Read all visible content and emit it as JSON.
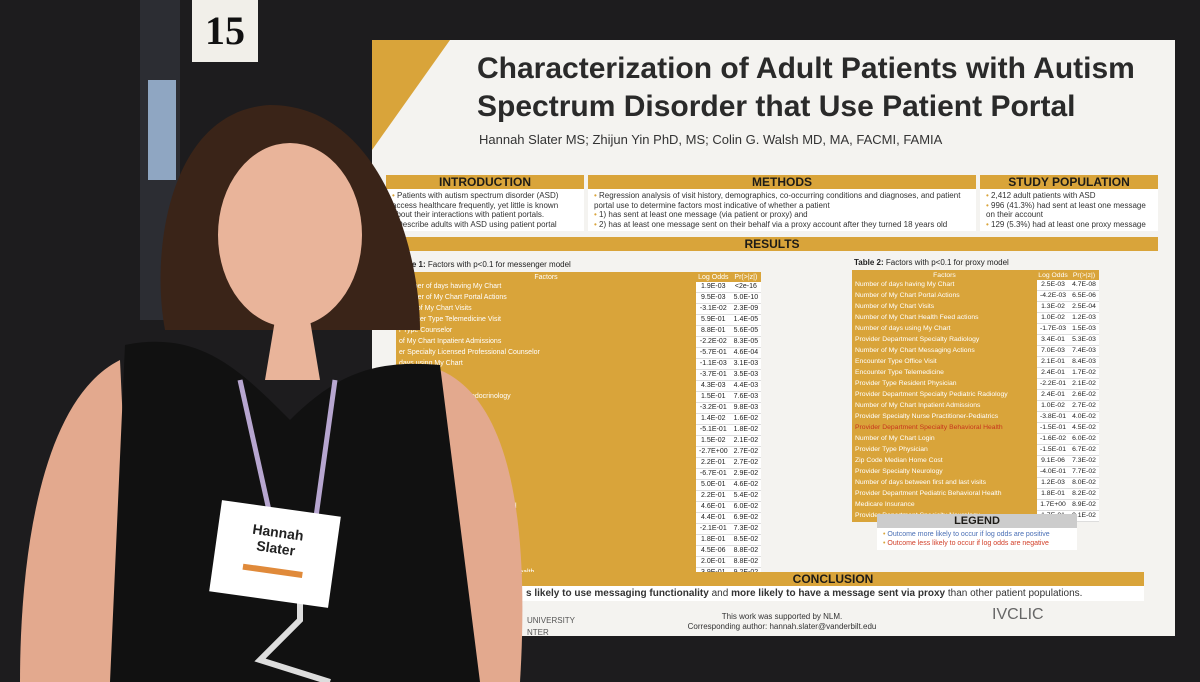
{
  "sign_number": "15",
  "badge": {
    "first": "Hannah",
    "last": "Slater"
  },
  "poster": {
    "title": [
      "Characterization of Adult Patients with Autism",
      "Spectrum Disorder that Use Patient Portal"
    ],
    "authors": "Hannah Slater MS; Zhijun Yin PhD, MS; Colin G. Walsh MD, MA, FACMI, FAMIA",
    "introduction": {
      "heading": "INTRODUCTION",
      "bullets": [
        "Patients with autism spectrum disorder (ASD) access healthcare frequently, yet little is known about their interactions with patient portals.",
        "Describe adults with ASD using patient portal"
      ]
    },
    "methods": {
      "heading": "METHODS",
      "bullets": [
        "Regression analysis of visit history, demographics, co-occurring conditions and diagnoses, and patient portal use to determine factors most indicative of whether a patient",
        "1) has sent at least one message (via patient or proxy) and",
        "2) has at least one message sent on their behalf via a proxy account after they turned 18 years old"
      ]
    },
    "study_population": {
      "heading": "STUDY POPULATION",
      "bullets": [
        "2,412 adult patients with ASD",
        "996 (41.3%) had sent at least one message on their account",
        "129 (5.3%) had at least one proxy message"
      ]
    },
    "results_heading": "RESULTS",
    "table1": {
      "caption_bold": "Table 1:",
      "caption": "Factors with p<0.1 for messenger model",
      "columns": [
        "Factors",
        "Log Odds",
        "Pr(>|z|)"
      ],
      "rows": [
        [
          "Number of days having My Chart",
          "1.9E-03",
          "<2e-16"
        ],
        [
          "Number of My Chart Portal Actions",
          "9.5E-03",
          "5.0E-10"
        ],
        [
          "mber of My Chart Visits",
          "-3.1E-02",
          "2.3E-09"
        ],
        [
          "ncounter Type Telemedicine Visit",
          "5.9E-01",
          "1.4E-05"
        ],
        [
          "r Type Counselor",
          "8.8E-01",
          "5.6E-05"
        ],
        [
          "of My Chart Inpatient Admissions",
          "-2.2E-02",
          "8.3E-05"
        ],
        [
          "er Specialty Licensed Professional Counselor",
          "-5.7E-01",
          "4.6E-04"
        ],
        [
          "days using My Chart",
          "-1.1E-03",
          "3.1E-03"
        ],
        [
          "Psychologist",
          "-3.7E-01",
          "3.5E-03"
        ],
        [
          "actions by Proxy",
          "4.3E-03",
          "4.4E-03"
        ],
        [
          "nt Specialty Pediatric Endocrinology",
          "1.5E-01",
          "7.6E-03"
        ],
        [
          "mergency department",
          "-3.2E-01",
          "9.8E-03"
        ],
        [
          "ealth Feed actions",
          "1.4E-02",
          "1.6E-02"
        ],
        [
          null,
          "-5.1E-01",
          "1.8E-02"
        ],
        [
          null,
          "1.5E-02",
          "2.1E-02"
        ],
        [
          "ssaging Actions",
          "-2.7E+00",
          "2.7E-02"
        ],
        [
          null,
          "2.2E-01",
          "2.7E-02"
        ],
        [
          "Visit",
          "-6.7E-01",
          "2.9E-02"
        ],
        [
          "ition",
          "5.0E-01",
          "4.6E-02"
        ],
        [
          "ort",
          "2.2E-01",
          "5.4E-02"
        ],
        [
          "al Health General Psychiatric Hospital",
          "4.6E-01",
          "6.0E-02"
        ],
        [
          "n",
          "4.4E-01",
          "6.9E-02"
        ],
        [
          null,
          "-2.1E-01",
          "7.3E-02"
        ],
        [
          "an",
          "1.8E-01",
          "8.5E-02"
        ],
        [
          "al Health Pediatrics",
          "4.5E-06",
          "8.8E-02"
        ],
        [
          null,
          "2.0E-01",
          "8.8E-02"
        ],
        [
          "l Health Pediatric Community Mental Health",
          "3.9E-01",
          "9.2E-02"
        ],
        [
          null,
          "-4.0E-01",
          "9.5E-02"
        ]
      ]
    },
    "table2": {
      "caption_bold": "Table 2:",
      "caption": "Factors with p<0.1 for proxy model",
      "columns": [
        "Factors",
        "Log Odds",
        "Pr(>|z|)"
      ],
      "rows": [
        [
          "Number of days having My Chart",
          "2.5E-03",
          "4.7E-08"
        ],
        [
          "Number of My Chart Portal Actions",
          "-4.2E-03",
          "6.5E-06"
        ],
        [
          "Number of My Chart Visits",
          "1.3E-02",
          "2.5E-04"
        ],
        [
          "Number of My Chart Health Feed actions",
          "1.0E-02",
          "1.2E-03"
        ],
        [
          "Number of days using My Chart",
          "-1.7E-03",
          "1.5E-03"
        ],
        [
          "Provider Department Specialty Radiology",
          "3.4E-01",
          "5.3E-03"
        ],
        [
          "Number of My Chart Messaging Actions",
          "7.0E-03",
          "7.4E-03"
        ],
        [
          "Encounter Type Office Visit",
          "2.1E-01",
          "8.4E-03"
        ],
        [
          "Encounter Type Telemedicine",
          "2.4E-01",
          "1.7E-02"
        ],
        [
          "Provider Type Resident Physician",
          "-2.2E-01",
          "2.1E-02"
        ],
        [
          "Provider Department Specialty Pediatric Radiology",
          "2.4E-01",
          "2.6E-02"
        ],
        [
          "Number of My Chart Inpatient Admissions",
          "1.0E-02",
          "2.7E-02"
        ],
        [
          "Provider Specialty Nurse Practitioner-Pediatrics",
          "-3.8E-01",
          "4.0E-02"
        ],
        [
          "Provider Department Specialty Behavioral Health",
          "-1.5E-01",
          "4.5E-02"
        ],
        [
          "Number of My Chart Login",
          "-1.6E-02",
          "6.0E-02"
        ],
        [
          "Provider Type Physician",
          "-1.5E-01",
          "6.7E-02"
        ],
        [
          "Zip Code Median Home Cost",
          "9.1E-06",
          "7.3E-02"
        ],
        [
          "Provider Specialty Neurology",
          "-4.0E-01",
          "7.7E-02"
        ],
        [
          "Number of days between first and last visits",
          "1.2E-03",
          "8.0E-02"
        ],
        [
          "Provider Department Pediatric Behavioral Health",
          "1.8E-01",
          "8.2E-02"
        ],
        [
          "Medicare Insurance",
          "1.7E+00",
          "8.9E-02"
        ],
        [
          "Provider Department Specialty Neurology",
          "1.7E-01",
          "9.1E-02"
        ]
      ]
    },
    "legend": {
      "heading": "LEGEND",
      "items": [
        "Outcome more likely to occur if log odds are positive",
        "Outcome less likely to occur if log odds are negative"
      ]
    },
    "conclusion": {
      "heading": "CONCLUSION",
      "text_bold": "s likely to use messaging functionality",
      "text_mid": " and ",
      "text_bold2": "more likely to have a message sent via proxy",
      "text_end": " than other patient populations."
    },
    "footer": {
      "support": "This work was supported by NLM.",
      "contact": "Corresponding author: hannah.slater@vanderbilt.edu",
      "university": "UNIVERSITY",
      "center": "NTER",
      "logo": "IVCLIC"
    }
  }
}
